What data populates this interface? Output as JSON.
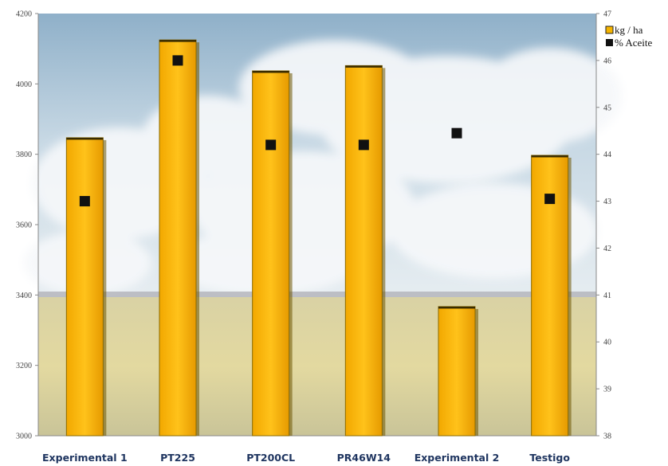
{
  "chart_data": {
    "type": "bar",
    "categories": [
      "Experimental 1",
      "PT225",
      "PT200CL",
      "PR46W14",
      "Experimental 2",
      "Testigo"
    ],
    "series": [
      {
        "name": "kg / ha",
        "kind": "bar",
        "axis": "left",
        "color": "#F5B400",
        "values": [
          3847,
          4125,
          4037,
          4052,
          3367,
          3797
        ]
      },
      {
        "name": "% Aceite",
        "kind": "marker",
        "axis": "right",
        "color": "#111111",
        "values": [
          43.0,
          46.0,
          44.2,
          44.2,
          44.45,
          43.05
        ]
      }
    ],
    "y_left": {
      "range": [
        3000,
        4200
      ],
      "ticks": [
        "3000",
        "3200",
        "3400",
        "3600",
        "3800",
        "4000",
        "4200"
      ]
    },
    "y_right": {
      "range": [
        38,
        47
      ],
      "ticks": [
        "38",
        "39",
        "40",
        "41",
        "42",
        "43",
        "44",
        "45",
        "46",
        "47"
      ]
    },
    "legend_position": "top-right",
    "background": "sky-and-field-photo",
    "grid": false
  }
}
